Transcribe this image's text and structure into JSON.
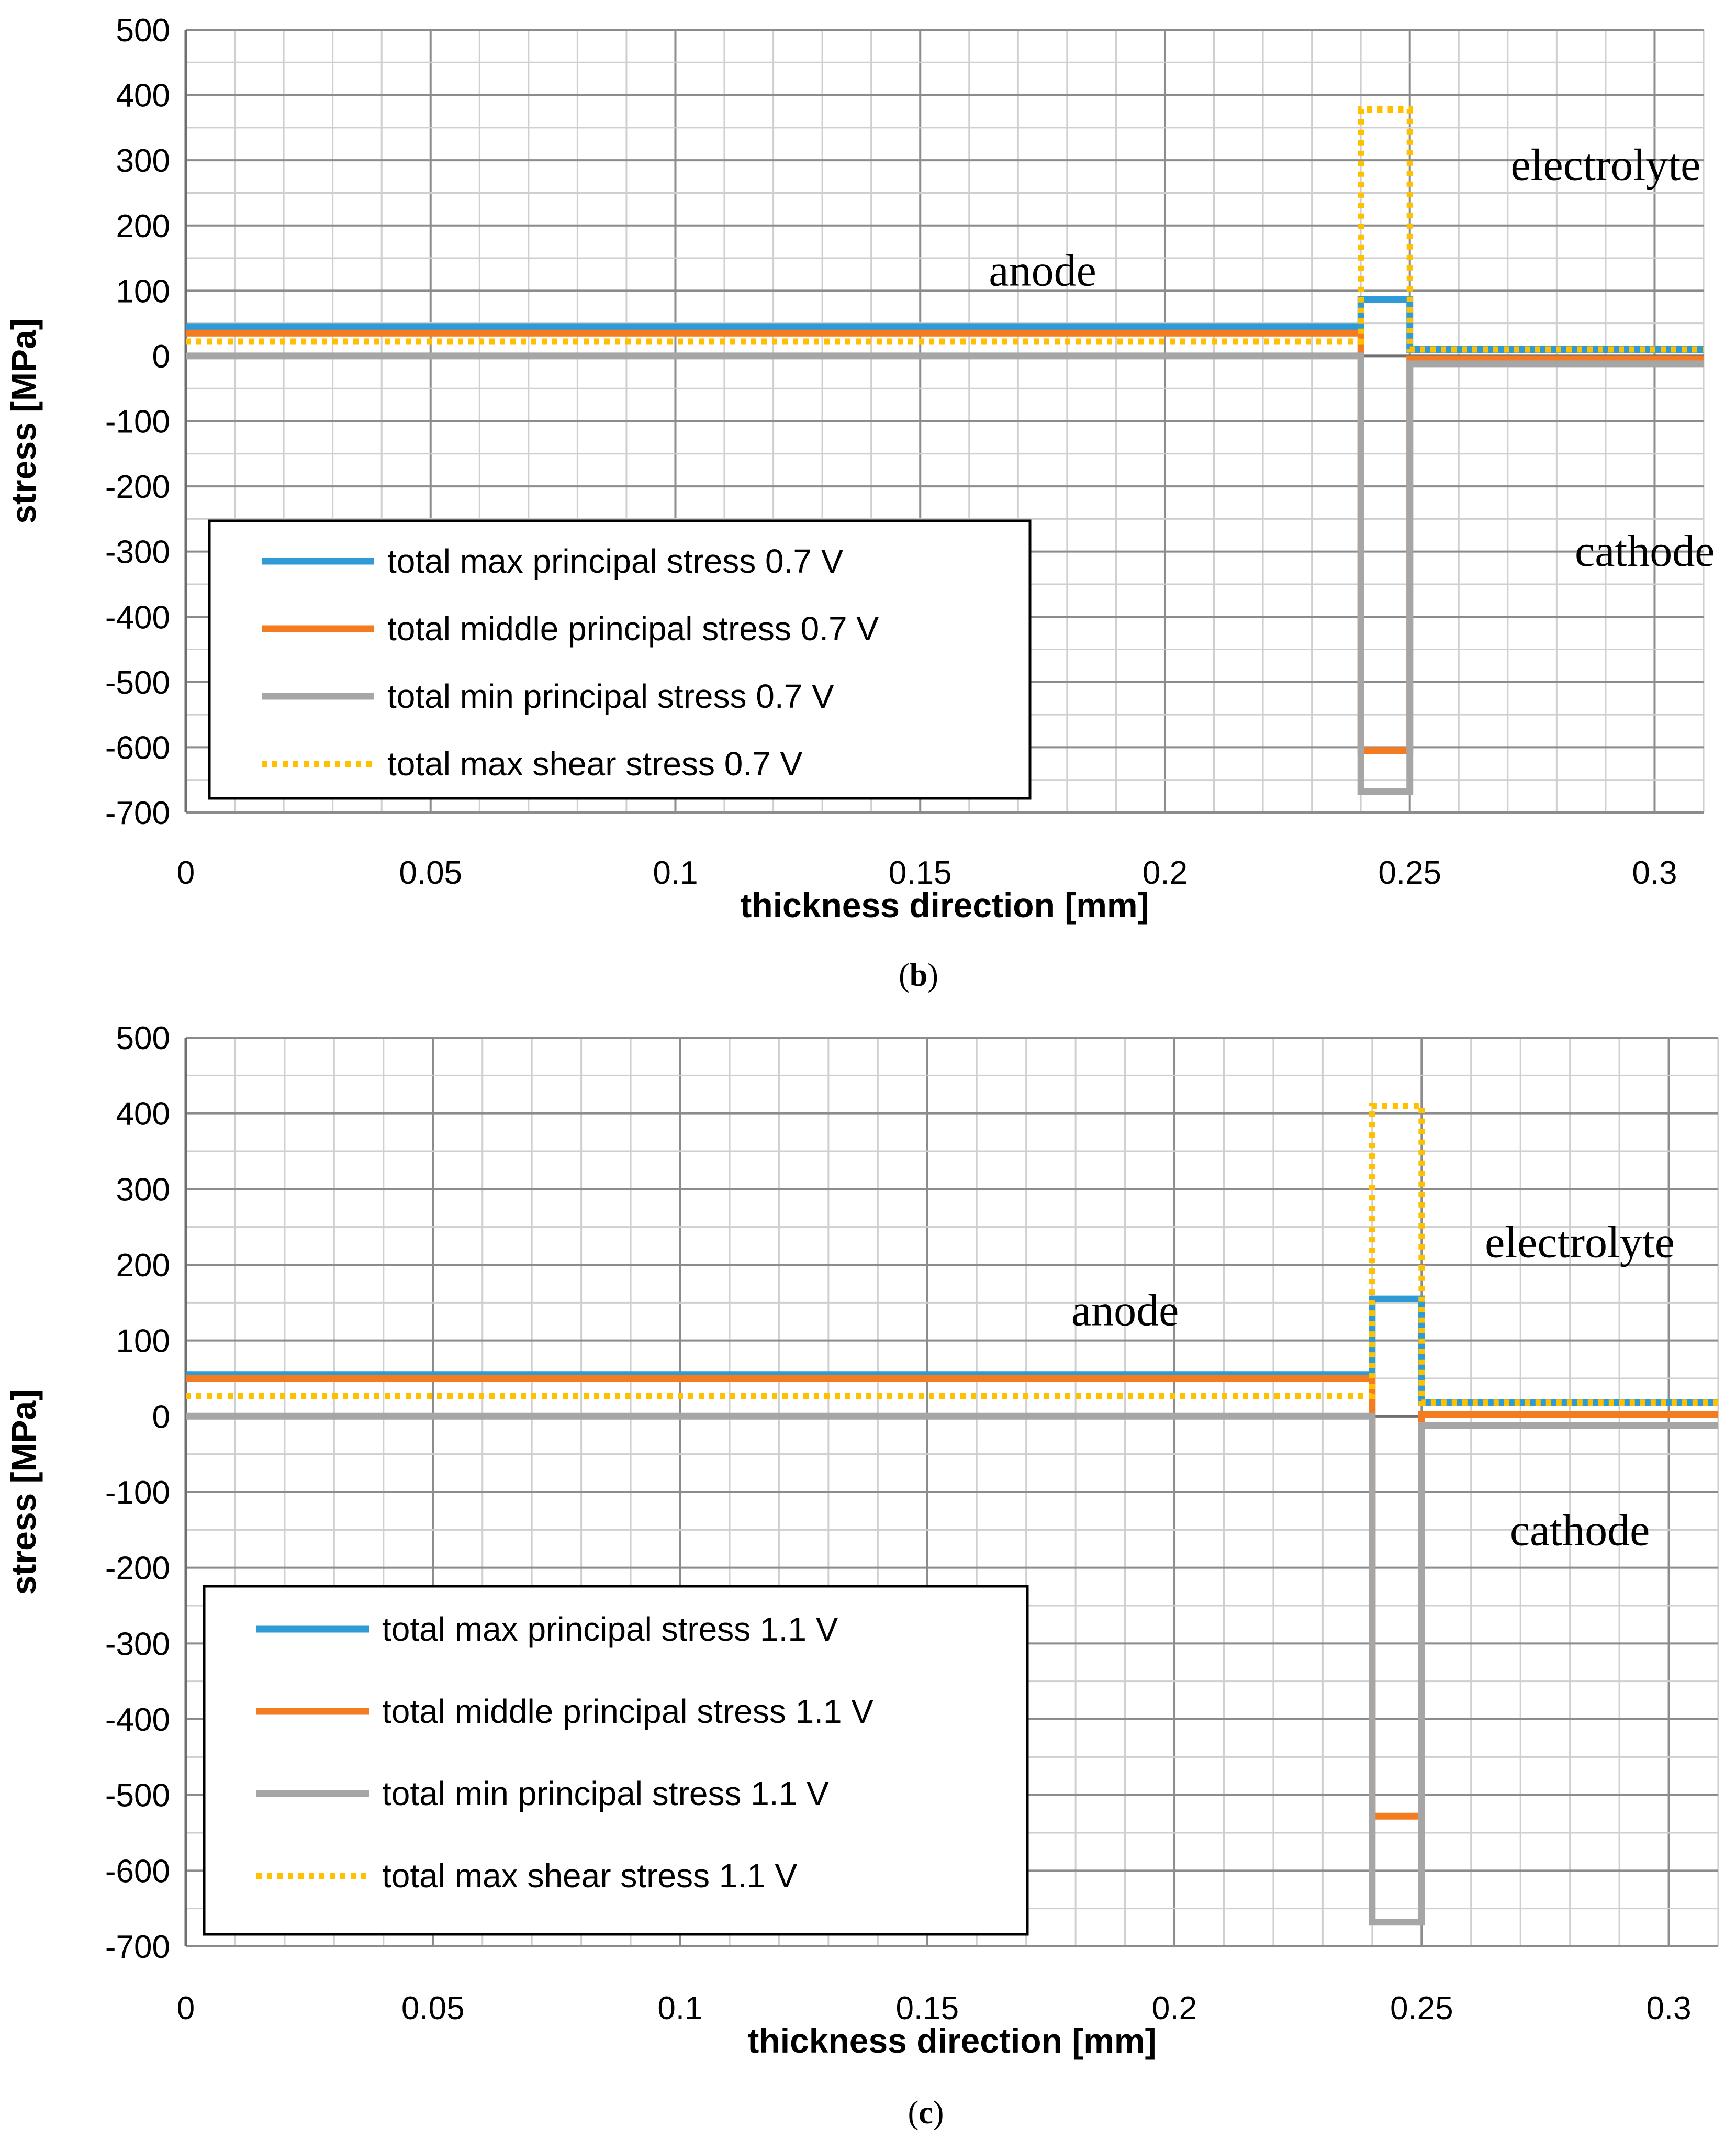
{
  "chart_data": [
    {
      "type": "line",
      "caption": {
        "open": "(",
        "letter": "b",
        "close": ")"
      },
      "xlabel": "thickness direction [mm]",
      "ylabel": "stress [MPa]",
      "xlim": [
        0,
        0.31
      ],
      "ylim": [
        -700,
        500
      ],
      "x_ticks": [
        "0",
        "0.05",
        "0.1",
        "0.15",
        "0.2",
        "0.25",
        "0.3"
      ],
      "y_ticks": [
        "500",
        "400",
        "300",
        "200",
        "100",
        "0",
        "-100",
        "-200",
        "-300",
        "-400",
        "-500",
        "-600",
        "-700"
      ],
      "grid": true,
      "legend_position": "bottom-left",
      "annotations": [
        {
          "text": "anode",
          "x": 0.175,
          "y": 108
        },
        {
          "text": "electrolyte",
          "x": 0.29,
          "y": 270
        },
        {
          "text": "cathode",
          "x": 0.298,
          "y": -322
        }
      ],
      "series": [
        {
          "name": "total max principal stress 0.7 V",
          "color": "#2e9bd6",
          "style": "solid",
          "x": [
            0,
            0.24,
            0.24,
            0.25,
            0.25,
            0.31
          ],
          "y": [
            45,
            45,
            87,
            87,
            10,
            10
          ]
        },
        {
          "name": "total middle principal stress 0.7 V",
          "color": "#f47b20",
          "style": "solid",
          "x": [
            0,
            0.24,
            0.24,
            0.25,
            0.25,
            0.31
          ],
          "y": [
            35,
            35,
            -605,
            -605,
            -5,
            -5
          ]
        },
        {
          "name": "total min principal stress 0.7 V",
          "color": "#a6a6a6",
          "style": "solid",
          "x": [
            0,
            0.24,
            0.24,
            0.25,
            0.25,
            0.31
          ],
          "y": [
            0,
            0,
            -668,
            -668,
            -12,
            -12
          ]
        },
        {
          "name": "total max shear stress 0.7 V",
          "color": "#ffc000",
          "style": "dotted",
          "x": [
            0,
            0.24,
            0.24,
            0.25,
            0.25,
            0.31
          ],
          "y": [
            22,
            22,
            378,
            378,
            10,
            10
          ]
        }
      ]
    },
    {
      "type": "line",
      "caption": {
        "open": "(",
        "letter": "c",
        "close": ")"
      },
      "xlabel": "thickness direction [mm]",
      "ylabel": "stress [MPa]",
      "xlim": [
        0,
        0.31
      ],
      "ylim": [
        -700,
        500
      ],
      "x_ticks": [
        "0",
        "0.05",
        "0.1",
        "0.15",
        "0.2",
        "0.25",
        "0.3"
      ],
      "y_ticks": [
        "500",
        "400",
        "300",
        "200",
        "100",
        "0",
        "-100",
        "-200",
        "-300",
        "-400",
        "-500",
        "-600",
        "-700"
      ],
      "grid": true,
      "legend_position": "bottom-left",
      "annotations": [
        {
          "text": "anode",
          "x": 0.19,
          "y": 120
        },
        {
          "text": "electrolyte",
          "x": 0.282,
          "y": 210
        },
        {
          "text": "cathode",
          "x": 0.282,
          "y": -170
        }
      ],
      "series": [
        {
          "name": "total max principal stress 1.1 V",
          "color": "#2e9bd6",
          "style": "solid",
          "x": [
            0,
            0.24,
            0.24,
            0.25,
            0.25,
            0.31
          ],
          "y": [
            55,
            55,
            155,
            155,
            18,
            18
          ]
        },
        {
          "name": "total middle principal stress 1.1 V",
          "color": "#f47b20",
          "style": "solid",
          "x": [
            0,
            0.24,
            0.24,
            0.25,
            0.25,
            0.31
          ],
          "y": [
            50,
            50,
            -528,
            -528,
            2,
            2
          ]
        },
        {
          "name": "total min principal stress 1.1 V",
          "color": "#a6a6a6",
          "style": "solid",
          "x": [
            0,
            0.24,
            0.24,
            0.25,
            0.25,
            0.31
          ],
          "y": [
            0,
            0,
            -668,
            -668,
            -12,
            -12
          ]
        },
        {
          "name": "total max shear stress 1.1 V",
          "color": "#ffc000",
          "style": "dotted",
          "x": [
            0,
            0.24,
            0.24,
            0.25,
            0.25,
            0.31
          ],
          "y": [
            27,
            27,
            410,
            410,
            18,
            18
          ]
        }
      ]
    }
  ]
}
